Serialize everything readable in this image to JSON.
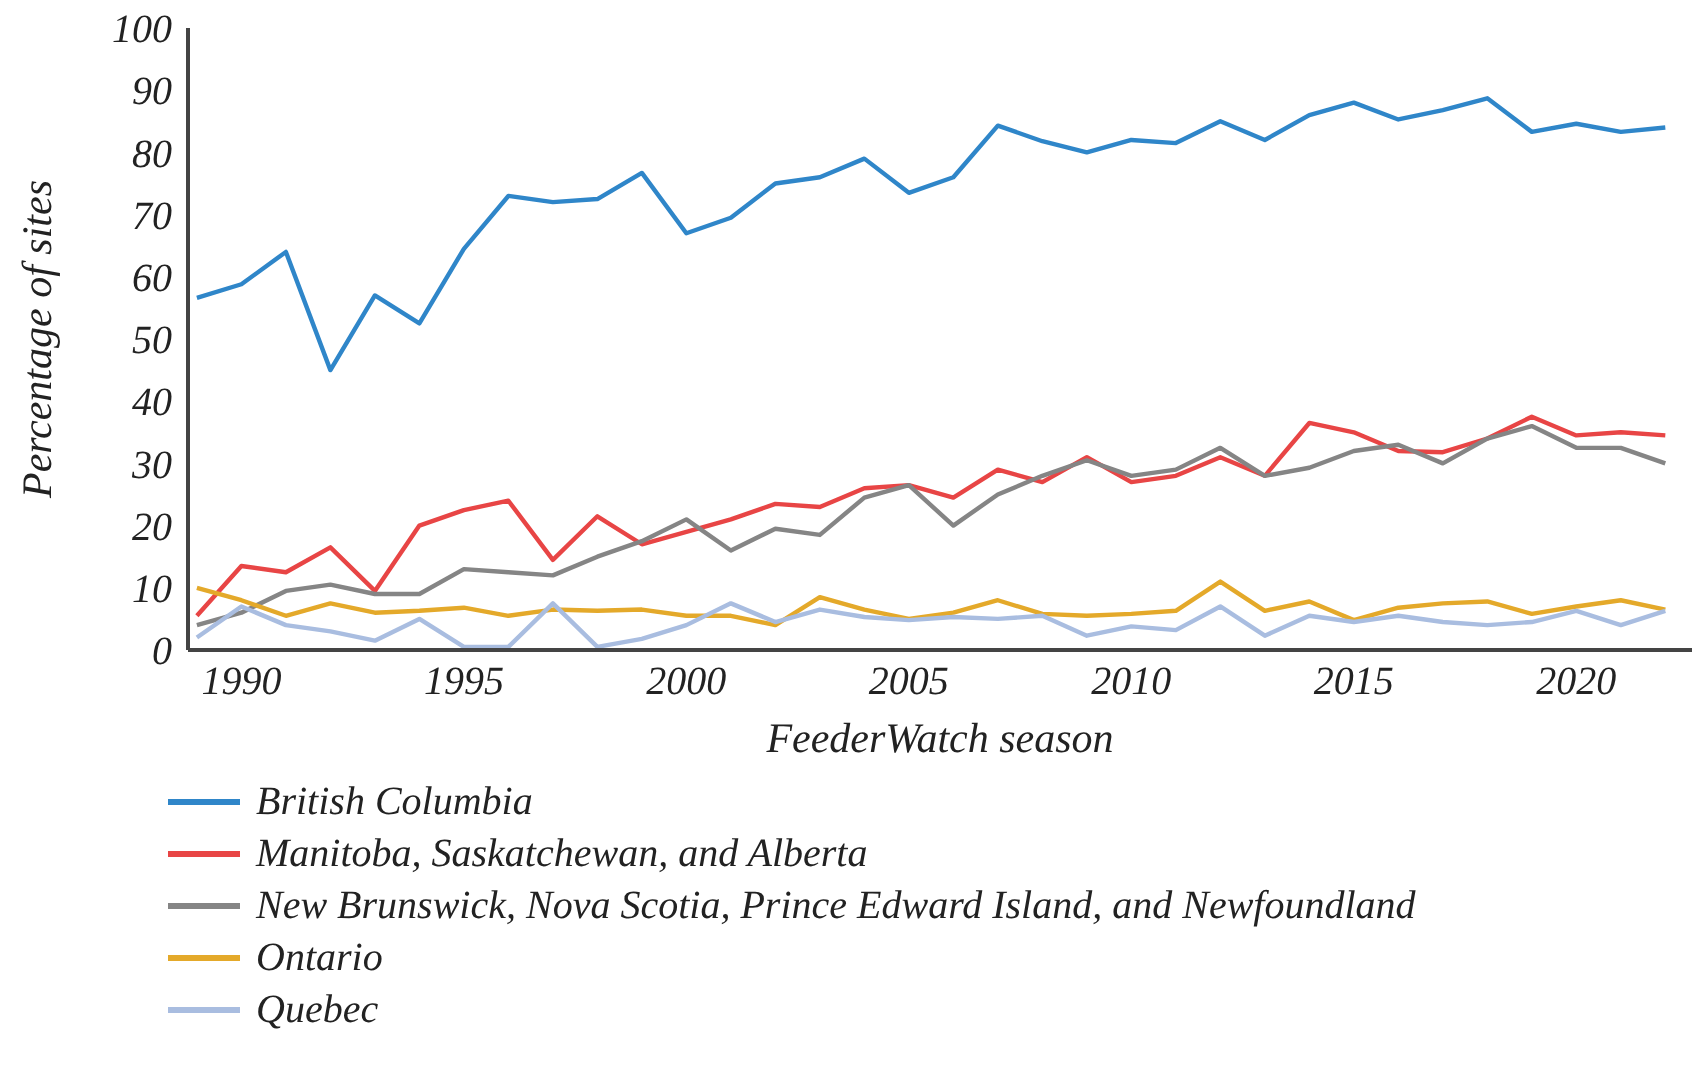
{
  "chart_data": {
    "type": "line",
    "xlabel": "FeederWatch season",
    "ylabel": "Percentage of sites",
    "x": [
      1989,
      1990,
      1991,
      1992,
      1993,
      1994,
      1995,
      1996,
      1997,
      1998,
      1999,
      2000,
      2001,
      2002,
      2003,
      2004,
      2005,
      2006,
      2007,
      2008,
      2009,
      2010,
      2011,
      2012,
      2013,
      2014,
      2015,
      2016,
      2017,
      2018,
      2019,
      2020,
      2021,
      2022
    ],
    "xlim": [
      1988.8,
      2022.6
    ],
    "xticks": [
      1990,
      1995,
      2000,
      2005,
      2010,
      2015,
      2020
    ],
    "ylim": [
      0,
      100
    ],
    "yticks": [
      0,
      10,
      20,
      30,
      40,
      50,
      60,
      70,
      80,
      90,
      100
    ],
    "grid": false,
    "legend": "bottom",
    "marker": "none",
    "line_style": "solid",
    "series": [
      {
        "name": "British Columbia",
        "color": "#2f86c9",
        "values": [
          56.6,
          58.8,
          64,
          45,
          57,
          52.5,
          64.5,
          73,
          72,
          72.5,
          76.7,
          67,
          69.5,
          75,
          76,
          79,
          73.5,
          76,
          84.3,
          81.8,
          80,
          82,
          81.5,
          85,
          82,
          86,
          88,
          85.3,
          86.8,
          88.7,
          83.3,
          84.6,
          83.3,
          84
        ]
      },
      {
        "name": "Manitoba, Saskatchewan, and Alberta",
        "color": "#e84545",
        "values": [
          5.5,
          13.5,
          12.5,
          16.5,
          9.5,
          20,
          22.5,
          24,
          14.5,
          21.5,
          17,
          19,
          21,
          23.5,
          23,
          26,
          26.5,
          24.5,
          29,
          27,
          31,
          27,
          28,
          31,
          28,
          36.5,
          35,
          32,
          31.8,
          34,
          37.5,
          34.5,
          35,
          34.5
        ]
      },
      {
        "name": "New Brunswick, Nova Scotia, Prince Edward Island, and Newfoundland",
        "color": "#858585",
        "values": [
          4,
          6,
          9.5,
          10.5,
          9,
          9,
          13,
          12.5,
          12,
          15,
          17.5,
          21,
          16,
          19.5,
          18.5,
          24.5,
          26.5,
          20,
          25,
          28,
          30.5,
          28,
          29,
          32.5,
          28,
          29.3,
          32,
          33,
          30,
          34,
          36,
          32.5,
          32.5,
          30
        ]
      },
      {
        "name": "Ontario",
        "color": "#e4a92a",
        "values": [
          10,
          8,
          5.5,
          7.5,
          6,
          6.3,
          6.8,
          5.5,
          6.5,
          6.3,
          6.5,
          5.5,
          5.5,
          4,
          8.5,
          6.5,
          5,
          6,
          8,
          5.8,
          5.5,
          5.8,
          6.3,
          11,
          6.3,
          7.8,
          4.8,
          6.8,
          7.5,
          7.8,
          5.8,
          7,
          8,
          6.5
        ]
      },
      {
        "name": "Quebec",
        "color": "#a9bde0",
        "values": [
          2,
          7,
          4,
          3,
          1.5,
          5,
          0.5,
          0.5,
          7.5,
          0.5,
          1.8,
          4,
          7.5,
          4.5,
          6.5,
          5.3,
          4.8,
          5.3,
          5,
          5.5,
          2.3,
          3.8,
          3.2,
          7,
          2.3,
          5.5,
          4.5,
          5.5,
          4.5,
          4,
          4.5,
          6.3,
          4,
          6.3
        ]
      }
    ]
  }
}
